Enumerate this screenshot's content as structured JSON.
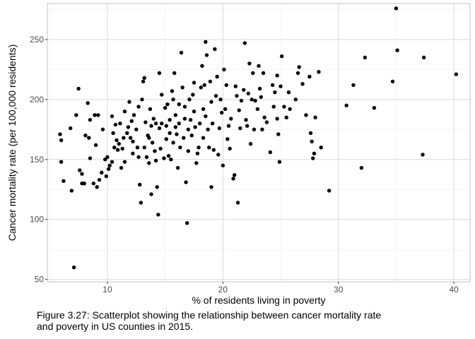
{
  "chart_data": {
    "type": "scatter",
    "title": "",
    "xlabel": "% of residents living in poverty",
    "ylabel": "Cancer mortality rate (per 100,000 residents)",
    "xlim": [
      4.8,
      41.4
    ],
    "ylim": [
      48,
      280
    ],
    "x_ticks": [
      10,
      20,
      30,
      40
    ],
    "y_ticks": [
      50,
      100,
      150,
      200,
      250
    ],
    "grid": true,
    "legend": "none",
    "point_color": "#000000",
    "points": [
      [
        5.9,
        171
      ],
      [
        6.0,
        166
      ],
      [
        6.0,
        148
      ],
      [
        6.2,
        132
      ],
      [
        6.8,
        176
      ],
      [
        6.9,
        124
      ],
      [
        7.1,
        60
      ],
      [
        7.3,
        187
      ],
      [
        7.5,
        209
      ],
      [
        7.6,
        141
      ],
      [
        7.8,
        130
      ],
      [
        7.8,
        138
      ],
      [
        8.0,
        130
      ],
      [
        8.1,
        170
      ],
      [
        8.3,
        197
      ],
      [
        8.4,
        168
      ],
      [
        8.5,
        151
      ],
      [
        8.5,
        183
      ],
      [
        8.8,
        130
      ],
      [
        8.9,
        187
      ],
      [
        9.0,
        162
      ],
      [
        9.1,
        127
      ],
      [
        9.2,
        187
      ],
      [
        9.3,
        133
      ],
      [
        9.5,
        139
      ],
      [
        9.6,
        175
      ],
      [
        9.8,
        150
      ],
      [
        9.9,
        136
      ],
      [
        10.0,
        152
      ],
      [
        10.1,
        142
      ],
      [
        10.2,
        145
      ],
      [
        10.4,
        186
      ],
      [
        10.4,
        148
      ],
      [
        10.5,
        172
      ],
      [
        10.6,
        160
      ],
      [
        10.7,
        179
      ],
      [
        10.8,
        166
      ],
      [
        10.9,
        158
      ],
      [
        11.0,
        163
      ],
      [
        11.1,
        180
      ],
      [
        11.2,
        143
      ],
      [
        11.3,
        159
      ],
      [
        11.4,
        168
      ],
      [
        11.5,
        190
      ],
      [
        11.5,
        148
      ],
      [
        11.7,
        172
      ],
      [
        11.8,
        177
      ],
      [
        11.9,
        198
      ],
      [
        12.0,
        168
      ],
      [
        12.1,
        182
      ],
      [
        12.2,
        165
      ],
      [
        12.2,
        155
      ],
      [
        12.3,
        187
      ],
      [
        12.5,
        175
      ],
      [
        12.6,
        160
      ],
      [
        12.7,
        194
      ],
      [
        12.7,
        152
      ],
      [
        12.8,
        129
      ],
      [
        12.9,
        114
      ],
      [
        13.0,
        200
      ],
      [
        13.1,
        215
      ],
      [
        13.2,
        218
      ],
      [
        13.2,
        160
      ],
      [
        13.3,
        181
      ],
      [
        13.4,
        152
      ],
      [
        13.5,
        170
      ],
      [
        13.6,
        168
      ],
      [
        13.6,
        147
      ],
      [
        13.7,
        192
      ],
      [
        13.8,
        121
      ],
      [
        13.8,
        178
      ],
      [
        13.9,
        164
      ],
      [
        14.0,
        184
      ],
      [
        14.1,
        157
      ],
      [
        14.2,
        180
      ],
      [
        14.2,
        149
      ],
      [
        14.3,
        127
      ],
      [
        14.4,
        104
      ],
      [
        14.5,
        222
      ],
      [
        14.5,
        176
      ],
      [
        14.6,
        159
      ],
      [
        14.7,
        204
      ],
      [
        14.7,
        180
      ],
      [
        14.9,
        151
      ],
      [
        15.0,
        193
      ],
      [
        15.1,
        167
      ],
      [
        15.1,
        178
      ],
      [
        15.2,
        196
      ],
      [
        15.3,
        153
      ],
      [
        15.4,
        183
      ],
      [
        15.4,
        172
      ],
      [
        15.5,
        150
      ],
      [
        15.6,
        207
      ],
      [
        15.7,
        200
      ],
      [
        15.7,
        164
      ],
      [
        15.8,
        222
      ],
      [
        15.9,
        177
      ],
      [
        15.9,
        187
      ],
      [
        16.0,
        171
      ],
      [
        16.1,
        143
      ],
      [
        16.2,
        196
      ],
      [
        16.2,
        180
      ],
      [
        16.3,
        160
      ],
      [
        16.4,
        239
      ],
      [
        16.5,
        210
      ],
      [
        16.6,
        168
      ],
      [
        16.7,
        194
      ],
      [
        16.7,
        184
      ],
      [
        16.8,
        131
      ],
      [
        16.9,
        97
      ],
      [
        17.0,
        175
      ],
      [
        17.0,
        157
      ],
      [
        17.1,
        200
      ],
      [
        17.2,
        183
      ],
      [
        17.3,
        170
      ],
      [
        17.4,
        204
      ],
      [
        17.5,
        214
      ],
      [
        17.5,
        190
      ],
      [
        17.6,
        177
      ],
      [
        17.7,
        147
      ],
      [
        17.8,
        155
      ],
      [
        17.9,
        160
      ],
      [
        18.0,
        180
      ],
      [
        18.1,
        210
      ],
      [
        18.2,
        228
      ],
      [
        18.3,
        192
      ],
      [
        18.3,
        168
      ],
      [
        18.4,
        212
      ],
      [
        18.5,
        248
      ],
      [
        18.5,
        186
      ],
      [
        18.6,
        237
      ],
      [
        18.7,
        175
      ],
      [
        18.8,
        160
      ],
      [
        18.9,
        215
      ],
      [
        19.0,
        198
      ],
      [
        19.0,
        127
      ],
      [
        19.1,
        180
      ],
      [
        19.2,
        158
      ],
      [
        19.3,
        242
      ],
      [
        19.4,
        203
      ],
      [
        19.5,
        219
      ],
      [
        19.6,
        154
      ],
      [
        19.7,
        176
      ],
      [
        19.8,
        200
      ],
      [
        19.9,
        189
      ],
      [
        20.0,
        145
      ],
      [
        20.1,
        225
      ],
      [
        20.2,
        192
      ],
      [
        20.3,
        212
      ],
      [
        20.4,
        167
      ],
      [
        20.5,
        178
      ],
      [
        20.6,
        159
      ],
      [
        20.7,
        184
      ],
      [
        20.9,
        134
      ],
      [
        21.0,
        137
      ],
      [
        21.1,
        211
      ],
      [
        21.2,
        203
      ],
      [
        21.3,
        114
      ],
      [
        21.4,
        191
      ],
      [
        21.5,
        176
      ],
      [
        21.6,
        199
      ],
      [
        21.8,
        208
      ],
      [
        21.9,
        247
      ],
      [
        22.0,
        183
      ],
      [
        22.1,
        178
      ],
      [
        22.2,
        205
      ],
      [
        22.3,
        230
      ],
      [
        22.4,
        163
      ],
      [
        22.5,
        200
      ],
      [
        22.6,
        222
      ],
      [
        22.7,
        175
      ],
      [
        22.8,
        199
      ],
      [
        23.0,
        192
      ],
      [
        23.1,
        228
      ],
      [
        23.2,
        209
      ],
      [
        23.3,
        202
      ],
      [
        23.4,
        175
      ],
      [
        23.5,
        222
      ],
      [
        23.6,
        185
      ],
      [
        23.8,
        181
      ],
      [
        24.1,
        156
      ],
      [
        24.3,
        212
      ],
      [
        24.4,
        194
      ],
      [
        24.5,
        206
      ],
      [
        24.7,
        220
      ],
      [
        24.7,
        184
      ],
      [
        24.8,
        171
      ],
      [
        24.9,
        148
      ],
      [
        25.0,
        211
      ],
      [
        25.1,
        236
      ],
      [
        25.3,
        194
      ],
      [
        25.5,
        185
      ],
      [
        25.7,
        206
      ],
      [
        25.8,
        192
      ],
      [
        26.3,
        200
      ],
      [
        26.5,
        222
      ],
      [
        26.6,
        227
      ],
      [
        26.9,
        213
      ],
      [
        27.2,
        187
      ],
      [
        27.5,
        219
      ],
      [
        27.6,
        172
      ],
      [
        27.7,
        165
      ],
      [
        27.8,
        151
      ],
      [
        27.9,
        155
      ],
      [
        28.0,
        185
      ],
      [
        28.3,
        223
      ],
      [
        28.5,
        160
      ],
      [
        29.2,
        124
      ],
      [
        30.7,
        195
      ],
      [
        31.3,
        212
      ],
      [
        32.0,
        143
      ],
      [
        32.3,
        235
      ],
      [
        33.1,
        193
      ],
      [
        34.7,
        215
      ],
      [
        35.0,
        276
      ],
      [
        35.1,
        241
      ],
      [
        37.3,
        154
      ],
      [
        37.4,
        235
      ],
      [
        40.2,
        221
      ]
    ]
  },
  "caption": "Figure 3.27: Scatterplot showing the relationship between cancer mortality rate\nand poverty in US counties in 2015."
}
